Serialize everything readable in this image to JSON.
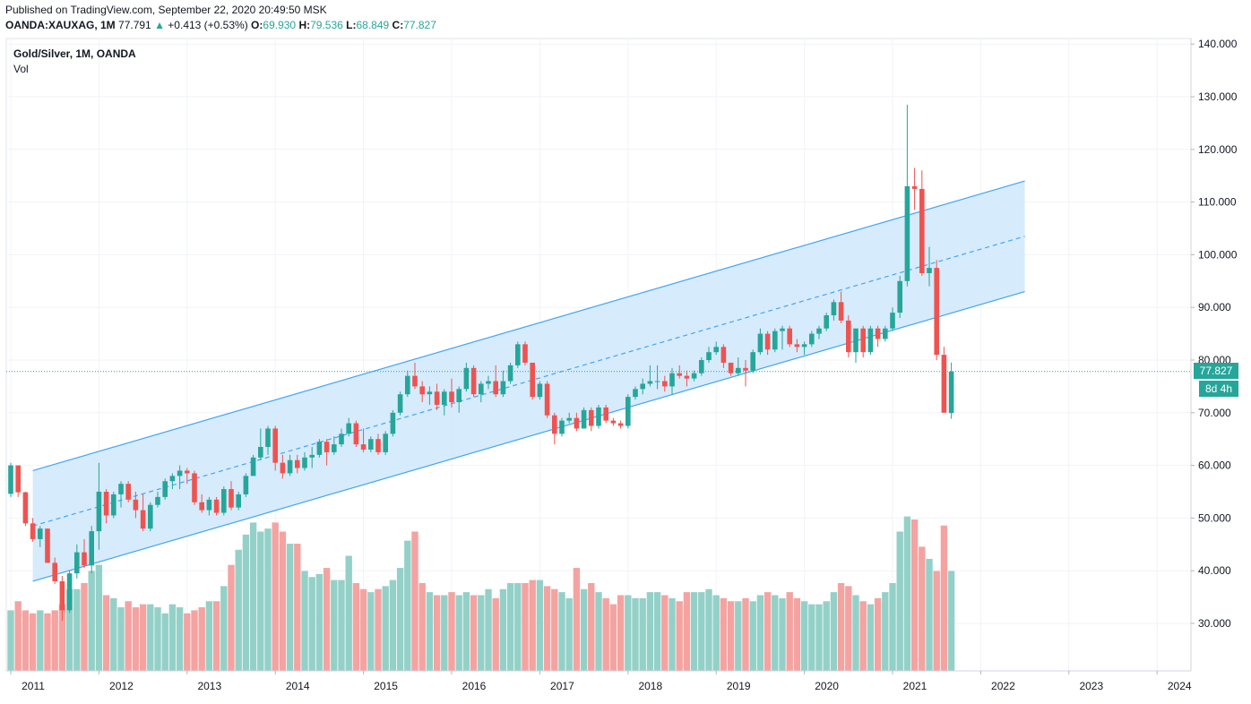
{
  "header": {
    "published": "Published on TradingView.com, September 22, 2020 20:49:50 MSK",
    "symbol": "OANDA:XAUXAG, 1M",
    "last": "77.791",
    "arrow": "▲",
    "change": "+0.413 (+0.53%)",
    "o_label": "O:",
    "o": "69.930",
    "h_label": "H:",
    "h": "79.536",
    "l_label": "L:",
    "l": "68.849",
    "c_label": "C:",
    "c": "77.827"
  },
  "legend": {
    "title": "Gold/Silver, 1M, OANDA",
    "indicator": "Vol"
  },
  "price_label": {
    "value": "77.827",
    "countdown": "8d 4h"
  },
  "colors": {
    "up": "#26a69a",
    "down": "#ef5350",
    "vol_up": "#93d1c8",
    "vol_down": "#f4a3a1",
    "channel_line": "#42a5f5",
    "channel_fill": "#d1e9fc",
    "grid": "#f0f3fa",
    "axis_text": "#131722"
  },
  "chart_data": {
    "type": "candlestick",
    "y_axis": {
      "min": 20,
      "max": 140,
      "ticks": [
        "140.000",
        "130.000",
        "120.000",
        "110.000",
        "100.000",
        "90.000",
        "80.000",
        "70.000",
        "60.000",
        "50.000",
        "40.000",
        "30.000"
      ]
    },
    "x_axis": {
      "ticks": [
        "2011",
        "2012",
        "2013",
        "2014",
        "2015",
        "2016",
        "2017",
        "2018",
        "2019",
        "2020",
        "2021",
        "2022",
        "2023",
        "2024"
      ]
    },
    "candles": [
      [
        54.6,
        60.5,
        54.0,
        60.0,
        20
      ],
      [
        60.0,
        60.0,
        54.0,
        54.9,
        23
      ],
      [
        54.9,
        55.0,
        48.5,
        49.0,
        20
      ],
      [
        49.0,
        50.0,
        45.5,
        46.0,
        19
      ],
      [
        46.0,
        48.5,
        44.5,
        48.0,
        20
      ],
      [
        48.0,
        48.0,
        41.5,
        41.5,
        19
      ],
      [
        41.5,
        42.5,
        37.5,
        38.0,
        20
      ],
      [
        38.0,
        39.0,
        30.5,
        32.5,
        22
      ],
      [
        32.5,
        40.0,
        32.0,
        39.5,
        27
      ],
      [
        39.5,
        45.0,
        38.5,
        43.5,
        27
      ],
      [
        43.5,
        46.0,
        40.5,
        41.0,
        29
      ],
      [
        41.0,
        48.5,
        39.5,
        47.5,
        33
      ],
      [
        47.5,
        60.5,
        44.0,
        55.0,
        35
      ],
      [
        55.0,
        55.5,
        49.0,
        50.5,
        25
      ],
      [
        50.5,
        55.0,
        50.0,
        54.5,
        24
      ],
      [
        54.5,
        57.0,
        52.0,
        56.5,
        21
      ],
      [
        56.5,
        57.0,
        53.0,
        53.5,
        23
      ],
      [
        53.5,
        55.0,
        50.0,
        51.5,
        21
      ],
      [
        51.5,
        54.5,
        47.5,
        48.0,
        22
      ],
      [
        48.0,
        53.0,
        47.5,
        52.5,
        22
      ],
      [
        52.5,
        55.0,
        52.0,
        54.0,
        21
      ],
      [
        54.0,
        57.5,
        53.5,
        57.0,
        19
      ],
      [
        57.0,
        58.5,
        55.5,
        58.0,
        22
      ],
      [
        58.0,
        60.0,
        55.5,
        59.0,
        21
      ],
      [
        59.0,
        59.5,
        56.5,
        58.5,
        19
      ],
      [
        58.5,
        59.0,
        52.5,
        53.0,
        20
      ],
      [
        53.0,
        54.5,
        51.0,
        51.5,
        21
      ],
      [
        51.5,
        54.0,
        50.5,
        53.5,
        23
      ],
      [
        53.5,
        54.0,
        50.5,
        51.0,
        23
      ],
      [
        51.0,
        56.0,
        50.5,
        55.5,
        28
      ],
      [
        55.5,
        57.0,
        51.5,
        52.0,
        35
      ],
      [
        52.0,
        55.0,
        51.5,
        54.5,
        40
      ],
      [
        54.5,
        58.5,
        54.0,
        58.0,
        45
      ],
      [
        58.0,
        62.0,
        58.0,
        61.5,
        49
      ],
      [
        61.5,
        67.0,
        61.0,
        63.5,
        46
      ],
      [
        63.5,
        67.5,
        62.0,
        67.0,
        47
      ],
      [
        67.0,
        67.5,
        59.0,
        60.5,
        49
      ],
      [
        60.5,
        62.0,
        57.5,
        58.5,
        46
      ],
      [
        58.5,
        62.0,
        58.0,
        61.0,
        42
      ],
      [
        61.0,
        62.0,
        58.5,
        59.5,
        42
      ],
      [
        59.5,
        62.5,
        59.0,
        61.5,
        33
      ],
      [
        61.5,
        63.5,
        59.5,
        62.0,
        31
      ],
      [
        62.0,
        65.0,
        61.5,
        64.5,
        32
      ],
      [
        64.5,
        65.0,
        60.0,
        62.5,
        34
      ],
      [
        62.5,
        65.5,
        62.0,
        64.0,
        30
      ],
      [
        64.0,
        67.0,
        63.5,
        66.0,
        30
      ],
      [
        66.0,
        69.0,
        65.5,
        68.0,
        38
      ],
      [
        68.0,
        68.5,
        63.5,
        64.0,
        29
      ],
      [
        64.0,
        67.0,
        62.5,
        63.0,
        27
      ],
      [
        63.0,
        65.5,
        62.5,
        65.0,
        26
      ],
      [
        65.0,
        66.0,
        62.0,
        62.5,
        27
      ],
      [
        62.5,
        66.5,
        62.0,
        66.0,
        28
      ],
      [
        66.0,
        70.5,
        65.5,
        70.0,
        30
      ],
      [
        70.0,
        74.0,
        69.5,
        73.5,
        34
      ],
      [
        73.5,
        78.0,
        73.0,
        77.0,
        43
      ],
      [
        77.0,
        79.5,
        74.5,
        75.0,
        46
      ],
      [
        75.0,
        76.0,
        72.0,
        73.5,
        29
      ],
      [
        73.5,
        75.0,
        71.5,
        74.0,
        26
      ],
      [
        74.0,
        75.5,
        70.5,
        71.5,
        25
      ],
      [
        71.5,
        74.5,
        69.5,
        74.0,
        25
      ],
      [
        74.0,
        76.5,
        71.0,
        72.0,
        26
      ],
      [
        72.0,
        75.0,
        70.0,
        74.5,
        25
      ],
      [
        74.5,
        79.5,
        74.0,
        78.5,
        26
      ],
      [
        78.5,
        79.0,
        73.0,
        73.5,
        25
      ],
      [
        73.5,
        76.0,
        72.0,
        75.5,
        25
      ],
      [
        75.5,
        77.0,
        74.5,
        76.0,
        27
      ],
      [
        76.0,
        79.0,
        73.0,
        73.5,
        24
      ],
      [
        73.5,
        78.0,
        73.0,
        76.0,
        27
      ],
      [
        76.0,
        79.5,
        75.5,
        79.0,
        29
      ],
      [
        79.0,
        83.5,
        78.5,
        83.0,
        29
      ],
      [
        83.0,
        83.5,
        79.0,
        79.5,
        29
      ],
      [
        79.5,
        79.5,
        72.5,
        73.0,
        30
      ],
      [
        73.0,
        76.0,
        72.5,
        75.5,
        30
      ],
      [
        75.5,
        76.0,
        69.0,
        69.5,
        28
      ],
      [
        69.5,
        70.0,
        64.0,
        66.0,
        27
      ],
      [
        66.0,
        69.0,
        65.5,
        68.5,
        26
      ],
      [
        68.5,
        70.0,
        68.0,
        69.0,
        24
      ],
      [
        69.0,
        70.0,
        66.5,
        67.0,
        34
      ],
      [
        67.0,
        71.0,
        67.0,
        70.5,
        27
      ],
      [
        70.5,
        71.0,
        66.5,
        67.5,
        29
      ],
      [
        67.5,
        71.5,
        67.0,
        71.0,
        26
      ],
      [
        71.0,
        71.5,
        68.0,
        68.5,
        24
      ],
      [
        68.5,
        69.0,
        67.5,
        68.0,
        22
      ],
      [
        68.0,
        68.5,
        67.0,
        67.5,
        25
      ],
      [
        67.5,
        73.5,
        67.0,
        73.0,
        25
      ],
      [
        73.0,
        75.0,
        72.5,
        74.5,
        24
      ],
      [
        74.5,
        76.5,
        73.5,
        75.5,
        24
      ],
      [
        75.5,
        79.0,
        75.0,
        76.0,
        26
      ],
      [
        76.0,
        79.0,
        74.5,
        76.0,
        26
      ],
      [
        76.0,
        77.0,
        74.0,
        75.0,
        25
      ],
      [
        75.0,
        78.5,
        73.5,
        77.5,
        24
      ],
      [
        77.5,
        79.0,
        76.5,
        77.0,
        23
      ],
      [
        77.0,
        78.0,
        75.0,
        76.5,
        26
      ],
      [
        76.5,
        78.0,
        76.0,
        77.5,
        26
      ],
      [
        77.5,
        80.5,
        77.0,
        80.0,
        26
      ],
      [
        80.0,
        82.5,
        79.5,
        81.5,
        27
      ],
      [
        81.5,
        83.5,
        81.0,
        82.5,
        25
      ],
      [
        82.5,
        83.0,
        78.5,
        79.5,
        24
      ],
      [
        79.5,
        79.5,
        77.0,
        77.5,
        23
      ],
      [
        77.5,
        80.5,
        77.0,
        78.5,
        23
      ],
      [
        78.5,
        80.0,
        75.0,
        78.0,
        24
      ],
      [
        78.0,
        82.0,
        77.5,
        81.5,
        23
      ],
      [
        81.5,
        86.0,
        81.0,
        85.0,
        25
      ],
      [
        85.0,
        85.5,
        81.0,
        82.0,
        26
      ],
      [
        82.0,
        86.0,
        81.5,
        85.5,
        25
      ],
      [
        85.5,
        86.5,
        82.0,
        86.0,
        24
      ],
      [
        86.0,
        86.5,
        82.5,
        83.0,
        26
      ],
      [
        83.0,
        84.0,
        81.5,
        82.5,
        24
      ],
      [
        82.5,
        83.5,
        81.0,
        83.0,
        23
      ],
      [
        83.0,
        85.5,
        82.5,
        85.0,
        22
      ],
      [
        85.0,
        86.5,
        84.0,
        86.0,
        22
      ],
      [
        86.0,
        89.0,
        85.5,
        88.5,
        23
      ],
      [
        88.5,
        91.5,
        87.5,
        91.0,
        26
      ],
      [
        91.0,
        93.0,
        87.0,
        87.5,
        29
      ],
      [
        87.5,
        88.5,
        80.5,
        81.5,
        28
      ],
      [
        81.5,
        86.0,
        79.5,
        86.0,
        25
      ],
      [
        86.0,
        86.5,
        80.5,
        81.5,
        23
      ],
      [
        81.5,
        86.5,
        81.0,
        86.0,
        22
      ],
      [
        86.0,
        86.5,
        82.5,
        84.0,
        24
      ],
      [
        84.0,
        86.5,
        83.5,
        86.0,
        26
      ],
      [
        86.0,
        90.0,
        85.5,
        89.0,
        29
      ],
      [
        89.0,
        96.0,
        88.0,
        95.0,
        46
      ],
      [
        95.0,
        128.5,
        94.0,
        113.0,
        51
      ],
      [
        113.0,
        116.5,
        108.5,
        112.5,
        50
      ],
      [
        112.5,
        116.0,
        96.0,
        96.5,
        41
      ],
      [
        96.5,
        101.5,
        94.0,
        97.5,
        37
      ],
      [
        97.5,
        99.0,
        80.0,
        81.0,
        33
      ],
      [
        81.0,
        82.5,
        70.0,
        70.0,
        48
      ],
      [
        69.93,
        79.536,
        68.849,
        77.827,
        33
      ]
    ],
    "channel": {
      "upper": {
        "start": [
          "2011-04",
          59.0
        ],
        "end": [
          "2022-07",
          114.0
        ]
      },
      "middle": {
        "start": [
          "2011-04",
          48.5
        ],
        "end": [
          "2022-07",
          103.5
        ]
      },
      "lower": {
        "start": [
          "2011-04",
          38.0
        ],
        "end": [
          "2022-07",
          93.0
        ]
      }
    },
    "last_price_line": 77.827
  }
}
